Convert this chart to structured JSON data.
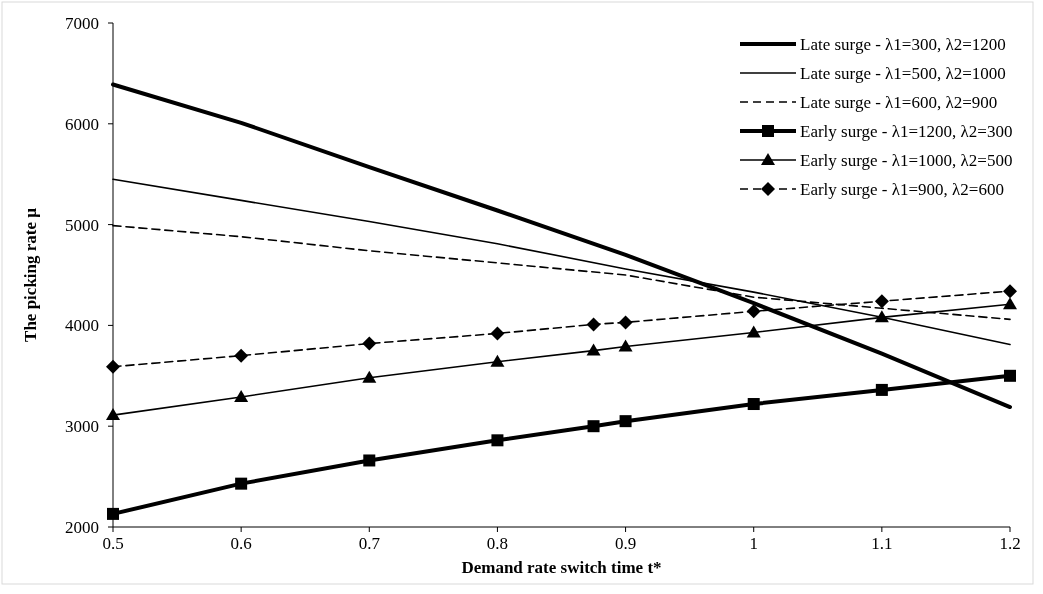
{
  "chart_data": {
    "type": "line",
    "xlabel": "Demand rate switch time t*",
    "ylabel": "The picking rate μ",
    "xlim": [
      0.5,
      1.2
    ],
    "ylim": [
      2000,
      7000
    ],
    "xticks": [
      0.5,
      0.6,
      0.7,
      0.8,
      0.9,
      1,
      1.1,
      1.2
    ],
    "yticks": [
      2000,
      3000,
      4000,
      5000,
      6000,
      7000
    ],
    "grid": false,
    "legend": "top right",
    "series": [
      {
        "name": "Late surge - λ1=300, λ2=1200",
        "color": "#000000",
        "line_style": "solid",
        "marker": "none",
        "x": [
          0.5,
          0.6,
          0.7,
          0.8,
          0.9,
          1,
          1.1,
          1.2
        ],
        "values": [
          6390,
          6010,
          5570,
          5140,
          4700,
          4220,
          3720,
          3190
        ]
      },
      {
        "name": "Late surge - λ1=500, λ2=1000",
        "color": "#000000",
        "line_style": "solid",
        "marker": "none",
        "x": [
          0.5,
          0.6,
          0.7,
          0.8,
          0.9,
          1,
          1.1,
          1.2
        ],
        "values": [
          5450,
          5240,
          5030,
          4810,
          4560,
          4330,
          4080,
          3810
        ]
      },
      {
        "name": "Late surge - λ1=600, λ2=900",
        "color": "#000000",
        "line_style": "dashed",
        "marker": "none",
        "x": [
          0.5,
          0.6,
          0.7,
          0.8,
          0.9,
          1,
          1.1,
          1.2
        ],
        "values": [
          4990,
          4880,
          4740,
          4620,
          4500,
          4280,
          4170,
          4060
        ]
      },
      {
        "name": "Early surge - λ1=1200, λ2=300",
        "color": "#000000",
        "line_style": "solid",
        "marker": "square",
        "x": [
          0.5,
          0.6,
          0.7,
          0.8,
          0.875,
          0.9,
          1,
          1.1,
          1.2
        ],
        "values": [
          2130,
          2430,
          2660,
          2860,
          3000,
          3050,
          3220,
          3360,
          3500
        ]
      },
      {
        "name": "Early surge - λ1=1000, λ2=500",
        "color": "#000000",
        "line_style": "solid",
        "marker": "triangle",
        "x": [
          0.5,
          0.6,
          0.7,
          0.8,
          0.875,
          0.9,
          1,
          1.1,
          1.2
        ],
        "values": [
          3110,
          3290,
          3480,
          3640,
          3750,
          3790,
          3930,
          4080,
          4210
        ]
      },
      {
        "name": "Early surge - λ1=900, λ2=600",
        "color": "#000000",
        "line_style": "dashed",
        "marker": "diamond",
        "x": [
          0.5,
          0.6,
          0.7,
          0.8,
          0.875,
          0.9,
          1,
          1.1,
          1.2
        ],
        "values": [
          3590,
          3700,
          3820,
          3920,
          4010,
          4030,
          4140,
          4240,
          4340
        ]
      }
    ]
  }
}
